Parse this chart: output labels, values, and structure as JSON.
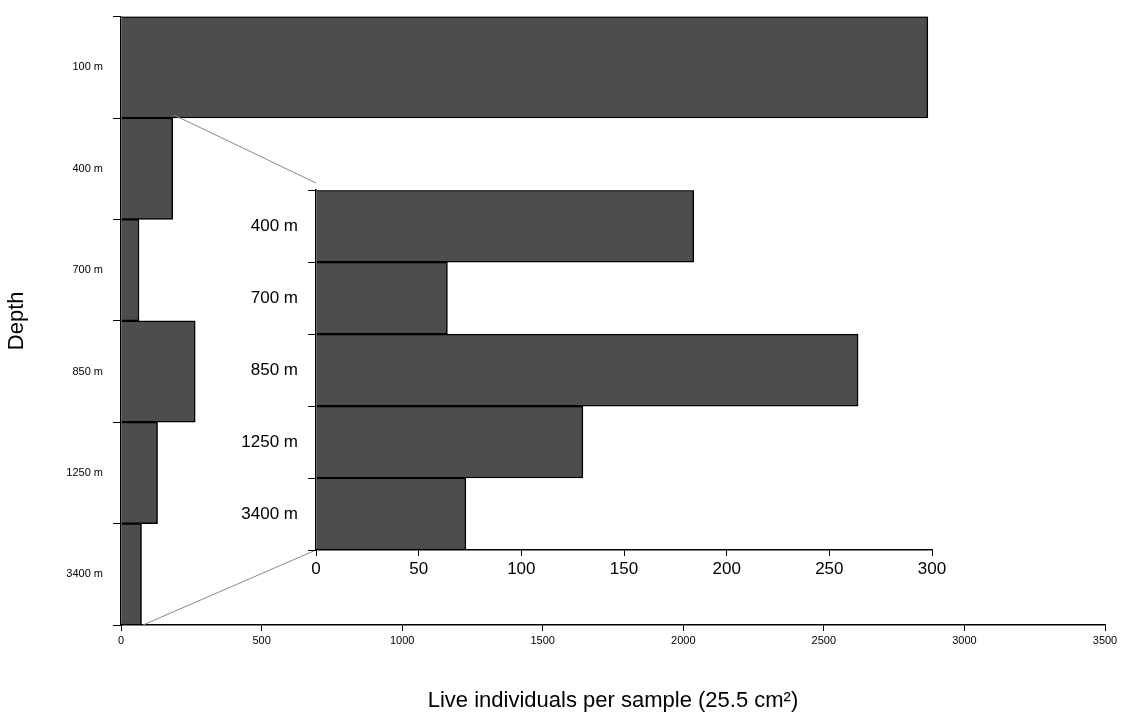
{
  "chart_data": [
    {
      "type": "bar",
      "orientation": "horizontal",
      "categories": [
        "100 m",
        "400 m",
        "700 m",
        "850 m",
        "1250 m",
        "3400 m"
      ],
      "values": [
        2870,
        184,
        64,
        264,
        130,
        73
      ],
      "color": "#4d4d4d",
      "xlim": [
        0,
        3500
      ],
      "xticks": [
        0,
        500,
        1000,
        1500,
        2000,
        2500,
        3000,
        3500
      ],
      "xlabel": "Live individuals per sample (25.5 cm²)",
      "ylabel": "Depth",
      "grid": false,
      "legend": false
    },
    {
      "type": "bar",
      "orientation": "horizontal",
      "categories": [
        "400 m",
        "700 m",
        "850 m",
        "1250 m",
        "3400 m"
      ],
      "values": [
        184,
        64,
        264,
        130,
        73
      ],
      "color": "#4d4d4d",
      "xlim": [
        0,
        300
      ],
      "xticks": [
        0,
        50,
        100,
        150,
        200,
        250,
        300
      ],
      "grid": false,
      "legend": false
    }
  ]
}
